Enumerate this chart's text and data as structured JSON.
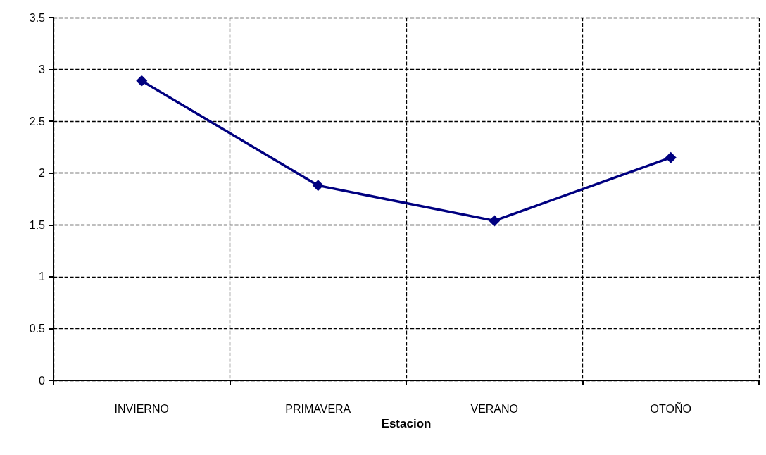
{
  "chart_data": {
    "type": "line",
    "xlabel": "Estacion",
    "categories": [
      "INVIERNO",
      "PRIMAVERA",
      "VERANO",
      "OTOÑO"
    ],
    "series": [
      {
        "color": "#000080",
        "values": [
          2.89,
          1.88,
          1.54,
          2.15
        ]
      }
    ],
    "ylim": [
      0,
      3.5
    ],
    "yticks": [
      0,
      0.5,
      1,
      1.5,
      2,
      2.5,
      3,
      3.5
    ],
    "grid": true,
    "marker": "diamond",
    "line_style": "solid"
  }
}
